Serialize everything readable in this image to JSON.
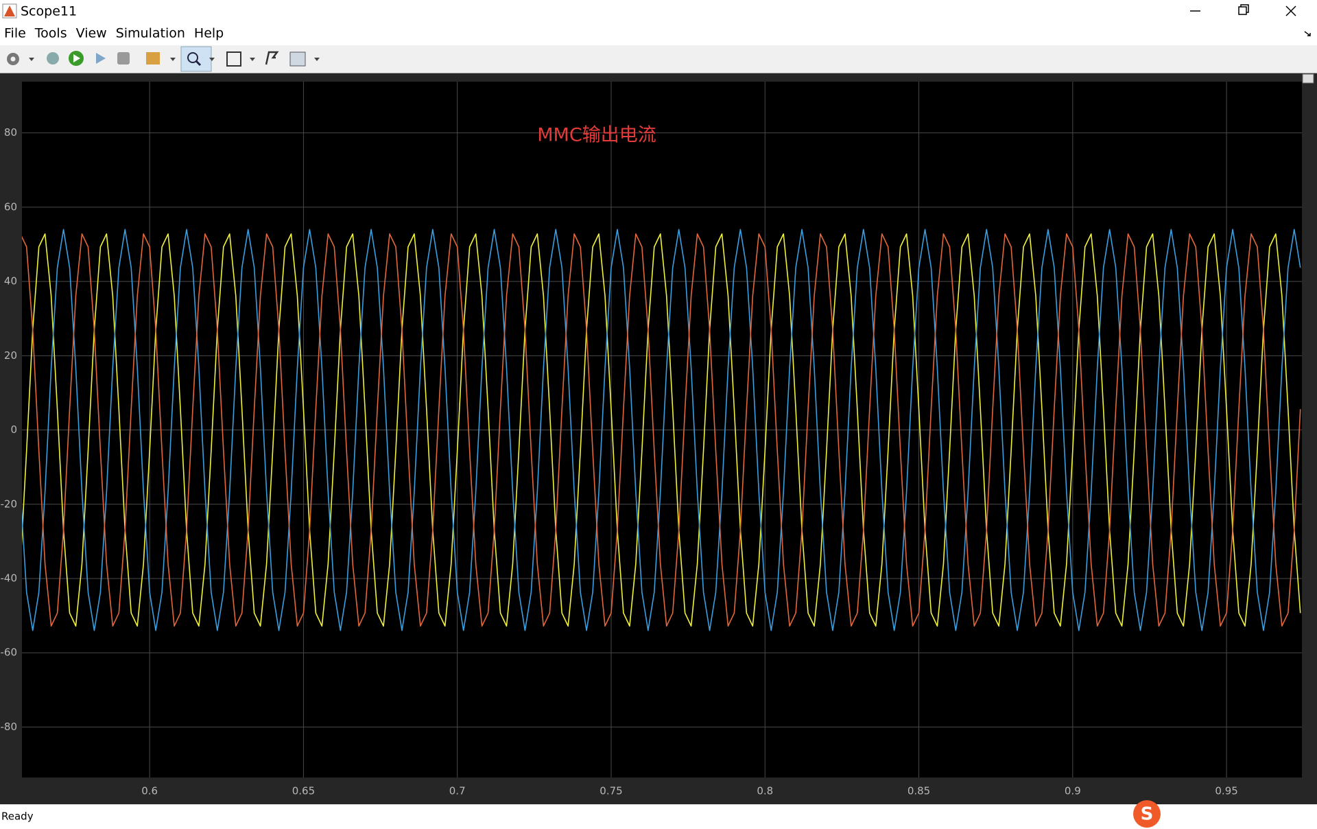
{
  "window": {
    "title": "Scope11",
    "menu": [
      "File",
      "Tools",
      "View",
      "Simulation",
      "Help"
    ],
    "status": "Ready"
  },
  "chart_data": {
    "type": "line",
    "annotation": "MMC输出电流",
    "x": [
      0.558,
      0.56,
      0.562,
      0.564,
      0.566,
      0.568,
      0.57,
      0.572,
      0.574,
      0.576,
      0.578,
      0.58,
      0.582,
      0.584,
      0.586,
      0.588,
      0.59,
      0.592,
      0.594,
      0.596,
      0.598,
      0.6,
      0.602,
      0.604,
      0.606,
      0.608,
      0.61,
      0.612,
      0.614,
      0.616,
      0.618,
      0.62,
      0.622,
      0.624,
      0.626,
      0.628,
      0.63,
      0.632,
      0.634,
      0.636,
      0.638,
      0.64,
      0.642,
      0.644,
      0.646,
      0.648,
      0.65,
      0.652,
      0.654,
      0.656,
      0.658,
      0.66,
      0.662,
      0.664,
      0.666,
      0.668,
      0.67,
      0.672,
      0.674,
      0.676,
      0.678,
      0.68,
      0.682,
      0.684,
      0.686,
      0.688,
      0.69,
      0.692,
      0.694,
      0.696,
      0.698,
      0.7,
      0.702,
      0.704,
      0.706,
      0.708,
      0.71,
      0.712,
      0.714,
      0.716,
      0.718,
      0.72,
      0.722,
      0.724,
      0.726,
      0.728,
      0.73,
      0.732,
      0.734,
      0.736,
      0.738,
      0.74,
      0.742,
      0.744,
      0.746,
      0.748,
      0.75,
      0.752,
      0.754,
      0.756,
      0.758,
      0.76,
      0.762,
      0.764,
      0.766,
      0.768,
      0.77,
      0.772,
      0.774,
      0.776,
      0.778,
      0.78,
      0.782,
      0.784,
      0.786,
      0.788,
      0.79,
      0.792,
      0.794,
      0.796,
      0.798,
      0.8,
      0.802,
      0.804,
      0.806,
      0.808,
      0.81,
      0.812,
      0.814,
      0.816,
      0.818,
      0.82,
      0.822,
      0.824,
      0.826,
      0.828,
      0.83,
      0.832,
      0.834,
      0.836,
      0.838,
      0.84,
      0.842,
      0.844,
      0.846,
      0.848,
      0.85,
      0.852,
      0.854,
      0.856,
      0.858,
      0.86,
      0.862,
      0.864,
      0.866,
      0.868,
      0.87,
      0.872,
      0.874,
      0.876,
      0.878,
      0.88,
      0.882,
      0.884,
      0.886,
      0.888,
      0.89,
      0.892,
      0.894,
      0.896,
      0.898,
      0.9,
      0.902,
      0.904,
      0.906,
      0.908,
      0.91,
      0.912,
      0.914,
      0.916,
      0.918,
      0.92,
      0.922,
      0.924,
      0.926,
      0.928,
      0.93,
      0.932,
      0.934,
      0.936,
      0.938,
      0.94,
      0.942,
      0.944,
      0.946,
      0.948,
      0.95,
      0.952,
      0.954,
      0.956,
      0.958,
      0.96,
      0.962,
      0.964,
      0.966,
      0.968,
      0.97,
      0.972,
      0.974
    ],
    "series": [
      {
        "color": "#f2f23c",
        "values": [
          -36.1,
          -5.6,
          27,
          49.3,
          52.8,
          36.1,
          5.6,
          -27,
          -49.3,
          -52.8,
          -36.1,
          -5.6,
          27,
          49.3,
          52.8,
          36.1,
          5.6,
          -27,
          -49.3,
          -52.8,
          -36.1,
          -5.6,
          27,
          49.3,
          52.8,
          36.1,
          5.6,
          -27,
          -49.3,
          -52.8,
          -36.1,
          -5.6,
          27,
          49.3,
          52.8,
          36.1,
          5.6,
          -27,
          -49.3,
          -52.8,
          -36.1,
          -5.6,
          27,
          49.3,
          52.8,
          36.1,
          5.6,
          -27,
          -49.3,
          -52.8,
          -36.1,
          -5.6,
          27,
          49.3,
          52.8,
          36.1,
          5.6,
          -27,
          -49.3,
          -52.8,
          -36.1,
          -5.6,
          27,
          49.3,
          52.8,
          36.1,
          5.6,
          -27,
          -49.3,
          -52.8,
          -36.1,
          -5.6,
          27,
          49.3,
          52.8,
          36.1,
          5.6,
          -27,
          -49.3,
          -52.8,
          -36.1,
          -5.6,
          27,
          49.3,
          52.8,
          36.1,
          5.6,
          -27,
          -49.3,
          -52.8,
          -36.1,
          -5.6,
          27,
          49.3,
          52.8,
          36.1,
          5.6,
          -27,
          -49.3,
          -52.8,
          -36.1,
          -5.6,
          27,
          49.3,
          52.8,
          36.1,
          5.6,
          -27,
          -49.3,
          -52.8,
          -36.1,
          -5.6,
          27,
          49.3,
          52.8,
          36.1,
          5.6,
          -27,
          -49.3,
          -52.8,
          -36.1,
          -5.6,
          27,
          49.3,
          52.8,
          36.1,
          5.6,
          -27,
          -49.3,
          -52.8,
          -36.1,
          -5.6,
          27,
          49.3,
          52.8,
          36.1,
          5.6,
          -27,
          -49.3,
          -52.8,
          -36.1,
          -5.6,
          27,
          49.3,
          52.8,
          36.1,
          5.6,
          -27,
          -49.3,
          -52.8,
          -36.1,
          -5.6,
          27,
          49.3,
          52.8,
          36.1,
          5.6,
          -27,
          -49.3,
          -52.8,
          -36.1,
          -5.6,
          27,
          49.3,
          52.8,
          36.1,
          5.6,
          -27,
          -49.3,
          -52.8,
          -36.1,
          -5.6,
          27,
          49.3,
          52.8,
          36.1,
          5.6,
          -27,
          -49.3,
          -52.8,
          -36.1,
          -5.6,
          27,
          49.3,
          52.8,
          36.1,
          5.6,
          -27,
          -49.3,
          -52.8,
          -36.1,
          -5.6,
          27,
          49.3,
          52.8,
          36.1,
          5.6,
          -27,
          -49.3,
          -52.8,
          -36.1,
          -5.6,
          27,
          49.3,
          52.8,
          36.1,
          5.6,
          -27,
          -49.3
        ]
      },
      {
        "color": "#3a9fe0",
        "values": [
          -16.7,
          -43.7,
          -54,
          -43.7,
          -16.7,
          16.7,
          43.7,
          54,
          43.7,
          16.7,
          -16.7,
          -43.7,
          -54,
          -43.7,
          -16.7,
          16.7,
          43.7,
          54,
          43.7,
          16.7,
          -16.7,
          -43.7,
          -54,
          -43.7,
          -16.7,
          16.7,
          43.7,
          54,
          43.7,
          16.7,
          -16.7,
          -43.7,
          -54,
          -43.7,
          -16.7,
          16.7,
          43.7,
          54,
          43.7,
          16.7,
          -16.7,
          -43.7,
          -54,
          -43.7,
          -16.7,
          16.7,
          43.7,
          54,
          43.7,
          16.7,
          -16.7,
          -43.7,
          -54,
          -43.7,
          -16.7,
          16.7,
          43.7,
          54,
          43.7,
          16.7,
          -16.7,
          -43.7,
          -54,
          -43.7,
          -16.7,
          16.7,
          43.7,
          54,
          43.7,
          16.7,
          -16.7,
          -43.7,
          -54,
          -43.7,
          -16.7,
          16.7,
          43.7,
          54,
          43.7,
          16.7,
          -16.7,
          -43.7,
          -54,
          -43.7,
          -16.7,
          16.7,
          43.7,
          54,
          43.7,
          16.7,
          -16.7,
          -43.7,
          -54,
          -43.7,
          -16.7,
          16.7,
          43.7,
          54,
          43.7,
          16.7,
          -16.7,
          -43.7,
          -54,
          -43.7,
          -16.7,
          16.7,
          43.7,
          54,
          43.7,
          16.7,
          -16.7,
          -43.7,
          -54,
          -43.7,
          -16.7,
          16.7,
          43.7,
          54,
          43.7,
          16.7,
          -16.7,
          -43.7,
          -54,
          -43.7,
          -16.7,
          16.7,
          43.7,
          54,
          43.7,
          16.7,
          -16.7,
          -43.7,
          -54,
          -43.7,
          -16.7,
          16.7,
          43.7,
          54,
          43.7,
          16.7,
          -16.7,
          -43.7,
          -54,
          -43.7,
          -16.7,
          16.7,
          43.7,
          54,
          43.7,
          16.7,
          -16.7,
          -43.7,
          -54,
          -43.7,
          -16.7,
          16.7,
          43.7,
          54,
          43.7,
          16.7,
          -16.7,
          -43.7,
          -54,
          -43.7,
          -16.7,
          16.7,
          43.7,
          54,
          43.7,
          16.7,
          -16.7,
          -43.7,
          -54,
          -43.7,
          -16.7,
          16.7,
          43.7,
          54,
          43.7,
          16.7,
          -16.7,
          -43.7,
          -54,
          -43.7,
          -16.7,
          16.7,
          43.7,
          54,
          43.7,
          16.7,
          -16.7,
          -43.7,
          -54,
          -43.7,
          -16.7,
          16.7,
          43.7,
          54,
          43.7,
          16.7,
          -16.7,
          -43.7,
          -54,
          -43.7,
          -16.7,
          16.7,
          43.7,
          54,
          43.7
        ]
      },
      {
        "color": "#e2673c",
        "values": [
          52.8,
          49.3,
          27,
          -5.6,
          -36.1,
          -52.8,
          -49.3,
          -27,
          5.6,
          36.1,
          52.8,
          49.3,
          27,
          -5.6,
          -36.1,
          -52.8,
          -49.3,
          -27,
          5.6,
          36.1,
          52.8,
          49.3,
          27,
          -5.6,
          -36.1,
          -52.8,
          -49.3,
          -27,
          5.6,
          36.1,
          52.8,
          49.3,
          27,
          -5.6,
          -36.1,
          -52.8,
          -49.3,
          -27,
          5.6,
          36.1,
          52.8,
          49.3,
          27,
          -5.6,
          -36.1,
          -52.8,
          -49.3,
          -27,
          5.6,
          36.1,
          52.8,
          49.3,
          27,
          -5.6,
          -36.1,
          -52.8,
          -49.3,
          -27,
          5.6,
          36.1,
          52.8,
          49.3,
          27,
          -5.6,
          -36.1,
          -52.8,
          -49.3,
          -27,
          5.6,
          36.1,
          52.8,
          49.3,
          27,
          -5.6,
          -36.1,
          -52.8,
          -49.3,
          -27,
          5.6,
          36.1,
          52.8,
          49.3,
          27,
          -5.6,
          -36.1,
          -52.8,
          -49.3,
          -27,
          5.6,
          36.1,
          52.8,
          49.3,
          27,
          -5.6,
          -36.1,
          -52.8,
          -49.3,
          -27,
          5.6,
          36.1,
          52.8,
          49.3,
          27,
          -5.6,
          -36.1,
          -52.8,
          -49.3,
          -27,
          5.6,
          36.1,
          52.8,
          49.3,
          27,
          -5.6,
          -36.1,
          -52.8,
          -49.3,
          -27,
          5.6,
          36.1,
          52.8,
          49.3,
          27,
          -5.6,
          -36.1,
          -52.8,
          -49.3,
          -27,
          5.6,
          36.1,
          52.8,
          49.3,
          27,
          -5.6,
          -36.1,
          -52.8,
          -49.3,
          -27,
          5.6,
          36.1,
          52.8,
          49.3,
          27,
          -5.6,
          -36.1,
          -52.8,
          -49.3,
          -27,
          5.6,
          36.1,
          52.8,
          49.3,
          27,
          -5.6,
          -36.1,
          -52.8,
          -49.3,
          -27,
          5.6,
          36.1,
          52.8,
          49.3,
          27,
          -5.6,
          -36.1,
          -52.8,
          -49.3,
          -27,
          5.6,
          36.1,
          52.8,
          49.3,
          27,
          -5.6,
          -36.1,
          -52.8,
          -49.3,
          -27,
          5.6,
          36.1,
          52.8,
          49.3,
          27,
          -5.6,
          -36.1,
          -52.8,
          -49.3,
          -27,
          5.6,
          36.1,
          52.8,
          49.3,
          27,
          -5.6,
          -36.1,
          -52.8,
          -49.3,
          -27,
          5.6,
          36.1,
          52.8,
          49.3,
          27,
          -5.6,
          -36.1,
          -52.8,
          -49.3,
          -27,
          5.6
        ]
      }
    ],
    "xlim": [
      0.5585,
      0.9745
    ],
    "xticks": [
      0.6,
      0.65,
      0.7,
      0.75,
      0.8,
      0.85,
      0.9,
      0.95
    ],
    "ylim": [
      -93.6,
      93.8
    ],
    "yticks": [
      -80,
      -60,
      -40,
      -20,
      0,
      20,
      40,
      60,
      80
    ],
    "grid": true
  }
}
